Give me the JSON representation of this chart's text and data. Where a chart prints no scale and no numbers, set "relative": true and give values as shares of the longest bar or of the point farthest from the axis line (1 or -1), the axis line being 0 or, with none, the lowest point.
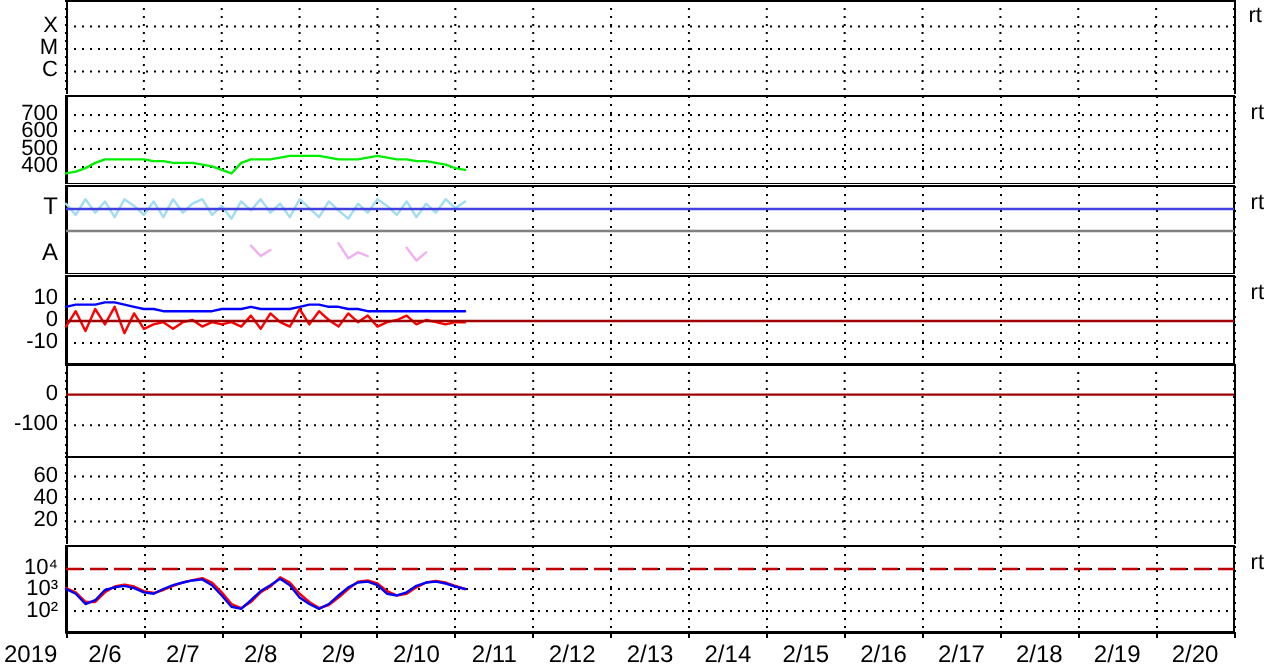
{
  "chart_data": [
    {
      "type": "other",
      "annotations": [
        "X",
        "M",
        "C",
        "rt"
      ]
    },
    {
      "type": "line",
      "xlim": [
        "2019-02-06",
        "2019-02-21"
      ],
      "ylim": [
        300,
        800
      ],
      "yticks": [
        400,
        500,
        600,
        700
      ],
      "grid": true,
      "tick_labels": "y",
      "marker": "none",
      "annotations": [
        "rt"
      ],
      "x": [
        "2019-02-06T00:00",
        "2019-02-06T03:00",
        "2019-02-06T06:00",
        "2019-02-06T09:00",
        "2019-02-06T12:00",
        "2019-02-06T15:00",
        "2019-02-06T18:00",
        "2019-02-06T21:00",
        "2019-02-07T00:00",
        "2019-02-07T03:00",
        "2019-02-07T06:00",
        "2019-02-07T09:00",
        "2019-02-07T12:00",
        "2019-02-07T15:00",
        "2019-02-07T18:00",
        "2019-02-07T21:00",
        "2019-02-08T00:00",
        "2019-02-08T03:00",
        "2019-02-08T06:00",
        "2019-02-08T09:00",
        "2019-02-08T12:00",
        "2019-02-08T15:00",
        "2019-02-08T18:00",
        "2019-02-08T21:00",
        "2019-02-09T00:00",
        "2019-02-09T03:00",
        "2019-02-09T06:00",
        "2019-02-09T09:00",
        "2019-02-09T12:00",
        "2019-02-09T15:00",
        "2019-02-09T18:00",
        "2019-02-09T21:00",
        "2019-02-10T00:00",
        "2019-02-10T03:00",
        "2019-02-10T06:00",
        "2019-02-10T09:00",
        "2019-02-10T12:00",
        "2019-02-10T15:00",
        "2019-02-10T18:00",
        "2019-02-10T21:00",
        "2019-02-11T00:00",
        "2019-02-11T03:00"
      ],
      "series": [
        {
          "color": "#00ee00",
          "values": [
            360,
            370,
            390,
            420,
            440,
            440,
            440,
            440,
            440,
            430,
            430,
            420,
            420,
            420,
            410,
            400,
            380,
            360,
            420,
            440,
            440,
            440,
            450,
            460,
            460,
            460,
            460,
            450,
            440,
            440,
            440,
            450,
            460,
            450,
            440,
            440,
            430,
            430,
            420,
            410,
            390,
            380
          ]
        }
      ]
    },
    {
      "type": "line",
      "relative": true,
      "xlim": [
        "2019-02-06",
        "2019-02-21"
      ],
      "grid": "x",
      "tick_labels": false,
      "marker": "none",
      "annotations": [
        "T",
        "A",
        "rt"
      ],
      "ref_lines": [
        {
          "axis": "y",
          "value": 0.88,
          "color": "#4040e0"
        },
        {
          "axis": "y",
          "value": 0.59,
          "color": "#808080"
        }
      ],
      "x": [
        "2019-02-06T00:00",
        "2019-02-06T03:00",
        "2019-02-06T06:00",
        "2019-02-06T09:00",
        "2019-02-06T12:00",
        "2019-02-06T15:00",
        "2019-02-06T18:00",
        "2019-02-06T21:00",
        "2019-02-07T00:00",
        "2019-02-07T03:00",
        "2019-02-07T06:00",
        "2019-02-07T09:00",
        "2019-02-07T12:00",
        "2019-02-07T15:00",
        "2019-02-07T18:00",
        "2019-02-07T21:00",
        "2019-02-08T00:00",
        "2019-02-08T03:00",
        "2019-02-08T06:00",
        "2019-02-08T09:00",
        "2019-02-08T12:00",
        "2019-02-08T15:00",
        "2019-02-08T18:00",
        "2019-02-08T21:00",
        "2019-02-09T00:00",
        "2019-02-09T03:00",
        "2019-02-09T06:00",
        "2019-02-09T09:00",
        "2019-02-09T12:00",
        "2019-02-09T15:00",
        "2019-02-09T18:00",
        "2019-02-09T21:00",
        "2019-02-10T00:00",
        "2019-02-10T03:00",
        "2019-02-10T06:00",
        "2019-02-10T09:00",
        "2019-02-10T12:00",
        "2019-02-10T15:00",
        "2019-02-10T18:00",
        "2019-02-10T21:00",
        "2019-02-11T00:00",
        "2019-02-11T03:00"
      ],
      "series": [
        {
          "color": "#a0dcf4",
          "values": [
            0.94,
            0.79,
            1,
            0.82,
            0.97,
            0.76,
            1,
            0.91,
            0.79,
            0.97,
            0.76,
            1,
            0.82,
            0.94,
            1,
            0.79,
            0.91,
            0.74,
            0.97,
            0.85,
            1,
            0.82,
            0.94,
            0.76,
            1,
            0.88,
            0.76,
            0.97,
            0.85,
            0.74,
            0.94,
            0.82,
            1,
            0.91,
            0.79,
            0.97,
            0.76,
            0.94,
            0.82,
            1,
            0.88,
            0.97
          ]
        },
        {
          "color": "#f0b0f0",
          "values": [
            null,
            null,
            null,
            null,
            null,
            null,
            null,
            null,
            null,
            null,
            null,
            null,
            null,
            null,
            null,
            null,
            null,
            null,
            null,
            0.38,
            0.24,
            0.32,
            null,
            null,
            null,
            null,
            null,
            null,
            0.41,
            0.21,
            0.29,
            0.24,
            null,
            null,
            null,
            0.35,
            0.18,
            0.29,
            null,
            null,
            null,
            null
          ]
        }
      ]
    },
    {
      "type": "line",
      "xlim": [
        "2019-02-06",
        "2019-02-21"
      ],
      "ylim": [
        -20,
        20
      ],
      "yticks": [
        -10,
        0,
        10
      ],
      "grid": true,
      "tick_labels": "y",
      "marker": "none",
      "annotations": [
        "rt"
      ],
      "ref_lines": [
        {
          "axis": "y",
          "value": 0,
          "color": "#a00000"
        }
      ],
      "x": [
        "2019-02-06T00:00",
        "2019-02-06T03:00",
        "2019-02-06T06:00",
        "2019-02-06T09:00",
        "2019-02-06T12:00",
        "2019-02-06T15:00",
        "2019-02-06T18:00",
        "2019-02-06T21:00",
        "2019-02-07T00:00",
        "2019-02-07T03:00",
        "2019-02-07T06:00",
        "2019-02-07T09:00",
        "2019-02-07T12:00",
        "2019-02-07T15:00",
        "2019-02-07T18:00",
        "2019-02-07T21:00",
        "2019-02-08T00:00",
        "2019-02-08T03:00",
        "2019-02-08T06:00",
        "2019-02-08T09:00",
        "2019-02-08T12:00",
        "2019-02-08T15:00",
        "2019-02-08T18:00",
        "2019-02-08T21:00",
        "2019-02-09T00:00",
        "2019-02-09T03:00",
        "2019-02-09T06:00",
        "2019-02-09T09:00",
        "2019-02-09T12:00",
        "2019-02-09T15:00",
        "2019-02-09T18:00",
        "2019-02-09T21:00",
        "2019-02-10T00:00",
        "2019-02-10T03:00",
        "2019-02-10T06:00",
        "2019-02-10T09:00",
        "2019-02-10T12:00",
        "2019-02-10T15:00",
        "2019-02-10T18:00",
        "2019-02-10T21:00",
        "2019-02-11T00:00",
        "2019-02-11T03:00"
      ],
      "series": [
        {
          "color": "#0000ff",
          "values": [
            6,
            7,
            7,
            7,
            8,
            8,
            7,
            6,
            5,
            5,
            4,
            4,
            4,
            4,
            4,
            4,
            5,
            5,
            5,
            6,
            5,
            5,
            5,
            5,
            6,
            7,
            7,
            6,
            6,
            5,
            5,
            4,
            4,
            4,
            4,
            4,
            4,
            4,
            4,
            4,
            4,
            4
          ]
        },
        {
          "color": "#ff0000",
          "values": [
            -3,
            4,
            -5,
            5,
            -2,
            6,
            -6,
            3,
            -4,
            -2,
            -1,
            -4,
            -1,
            0,
            -3,
            -1,
            -2,
            -1,
            -3,
            2,
            -4,
            3,
            -1,
            -3,
            5,
            -2,
            4,
            0,
            -3,
            3,
            -1,
            2,
            -3,
            -1,
            0,
            2,
            -2,
            0,
            -1,
            -2,
            -1,
            -1
          ]
        }
      ]
    },
    {
      "type": "other",
      "annotations": [
        "0",
        "-100"
      ]
    },
    {
      "type": "other",
      "annotations": [
        "60",
        "40",
        "20"
      ]
    },
    {
      "type": "line",
      "xlabel": "2019",
      "xlim": [
        "2019-02-06",
        "2019-02-21"
      ],
      "xticks": [
        {
          "value": "2019-02-06",
          "label": null
        },
        {
          "value": "2019-02-06T12:00",
          "label": "2/6"
        },
        {
          "value": "2019-02-07",
          "label": null
        },
        {
          "value": "2019-02-07T12:00",
          "label": "2/7"
        },
        {
          "value": "2019-02-08",
          "label": null
        },
        {
          "value": "2019-02-08T12:00",
          "label": "2/8"
        },
        {
          "value": "2019-02-09",
          "label": null
        },
        {
          "value": "2019-02-09T12:00",
          "label": "2/9"
        },
        {
          "value": "2019-02-10",
          "label": null
        },
        {
          "value": "2019-02-10T12:00",
          "label": "2/10"
        },
        {
          "value": "2019-02-11",
          "label": null
        },
        {
          "value": "2019-02-11T12:00",
          "label": "2/11"
        },
        {
          "value": "2019-02-12",
          "label": null
        },
        {
          "value": "2019-02-12T12:00",
          "label": "2/12"
        },
        {
          "value": "2019-02-13",
          "label": null
        },
        {
          "value": "2019-02-13T12:00",
          "label": "2/13"
        },
        {
          "value": "2019-02-14",
          "label": null
        },
        {
          "value": "2019-02-14T12:00",
          "label": "2/14"
        },
        {
          "value": "2019-02-15",
          "label": null
        },
        {
          "value": "2019-02-15T12:00",
          "label": "2/15"
        },
        {
          "value": "2019-02-16",
          "label": null
        },
        {
          "value": "2019-02-16T12:00",
          "label": "2/16"
        },
        {
          "value": "2019-02-17",
          "label": null
        },
        {
          "value": "2019-02-17T12:00",
          "label": "2/17"
        },
        {
          "value": "2019-02-18",
          "label": null
        },
        {
          "value": "2019-02-18T12:00",
          "label": "2/18"
        },
        {
          "value": "2019-02-19",
          "label": null
        },
        {
          "value": "2019-02-19T12:00",
          "label": "2/19"
        },
        {
          "value": "2019-02-20",
          "label": null
        },
        {
          "value": "2019-02-20T12:00",
          "label": "2/20"
        },
        {
          "value": "2019-02-21",
          "label": null
        }
      ],
      "log": true,
      "ylim": [
        10,
        100000
      ],
      "yticks": [
        {
          "value": 100,
          "label": "10²"
        },
        {
          "value": 1000,
          "label": "10³"
        },
        {
          "value": 10000,
          "label": "10⁴"
        }
      ],
      "grid": true,
      "marker": "none",
      "annotations": [
        "rt"
      ],
      "ref_lines": [
        {
          "axis": "y",
          "value": 10000,
          "color": "#c00000",
          "line_style": "dashed"
        }
      ],
      "x": [
        "2019-02-06T00:00",
        "2019-02-06T03:00",
        "2019-02-06T06:00",
        "2019-02-06T09:00",
        "2019-02-06T12:00",
        "2019-02-06T15:00",
        "2019-02-06T18:00",
        "2019-02-06T21:00",
        "2019-02-07T00:00",
        "2019-02-07T03:00",
        "2019-02-07T06:00",
        "2019-02-07T09:00",
        "2019-02-07T12:00",
        "2019-02-07T15:00",
        "2019-02-07T18:00",
        "2019-02-07T21:00",
        "2019-02-08T00:00",
        "2019-02-08T03:00",
        "2019-02-08T06:00",
        "2019-02-08T09:00",
        "2019-02-08T12:00",
        "2019-02-08T15:00",
        "2019-02-08T18:00",
        "2019-02-08T21:00",
        "2019-02-09T00:00",
        "2019-02-09T03:00",
        "2019-02-09T06:00",
        "2019-02-09T09:00",
        "2019-02-09T12:00",
        "2019-02-09T15:00",
        "2019-02-09T18:00",
        "2019-02-09T21:00",
        "2019-02-10T00:00",
        "2019-02-10T03:00",
        "2019-02-10T06:00",
        "2019-02-10T09:00",
        "2019-02-10T12:00",
        "2019-02-10T15:00",
        "2019-02-10T18:00",
        "2019-02-10T21:00",
        "2019-02-11T00:00",
        "2019-02-11T03:00"
      ],
      "series": [
        {
          "color": "#ff0000",
          "values": [
            1100,
            700,
            250,
            250,
            700,
            1300,
            1600,
            1300,
            800,
            650,
            900,
            1400,
            2000,
            2600,
            3200,
            2000,
            700,
            200,
            130,
            250,
            700,
            1300,
            3500,
            2000,
            600,
            250,
            130,
            180,
            400,
            1000,
            2200,
            2500,
            1800,
            800,
            500,
            600,
            1200,
            2000,
            2400,
            2000,
            1400,
            1000
          ]
        },
        {
          "color": "#0000ff",
          "values": [
            1000,
            600,
            200,
            300,
            900,
            1200,
            1400,
            1100,
            700,
            600,
            1000,
            1500,
            2000,
            2500,
            2800,
            1500,
            500,
            150,
            120,
            300,
            800,
            1500,
            3000,
            1500,
            400,
            200,
            120,
            200,
            500,
            1200,
            2000,
            2200,
            1500,
            600,
            500,
            700,
            1400,
            2000,
            2200,
            1800,
            1300,
            1000
          ]
        }
      ]
    }
  ]
}
